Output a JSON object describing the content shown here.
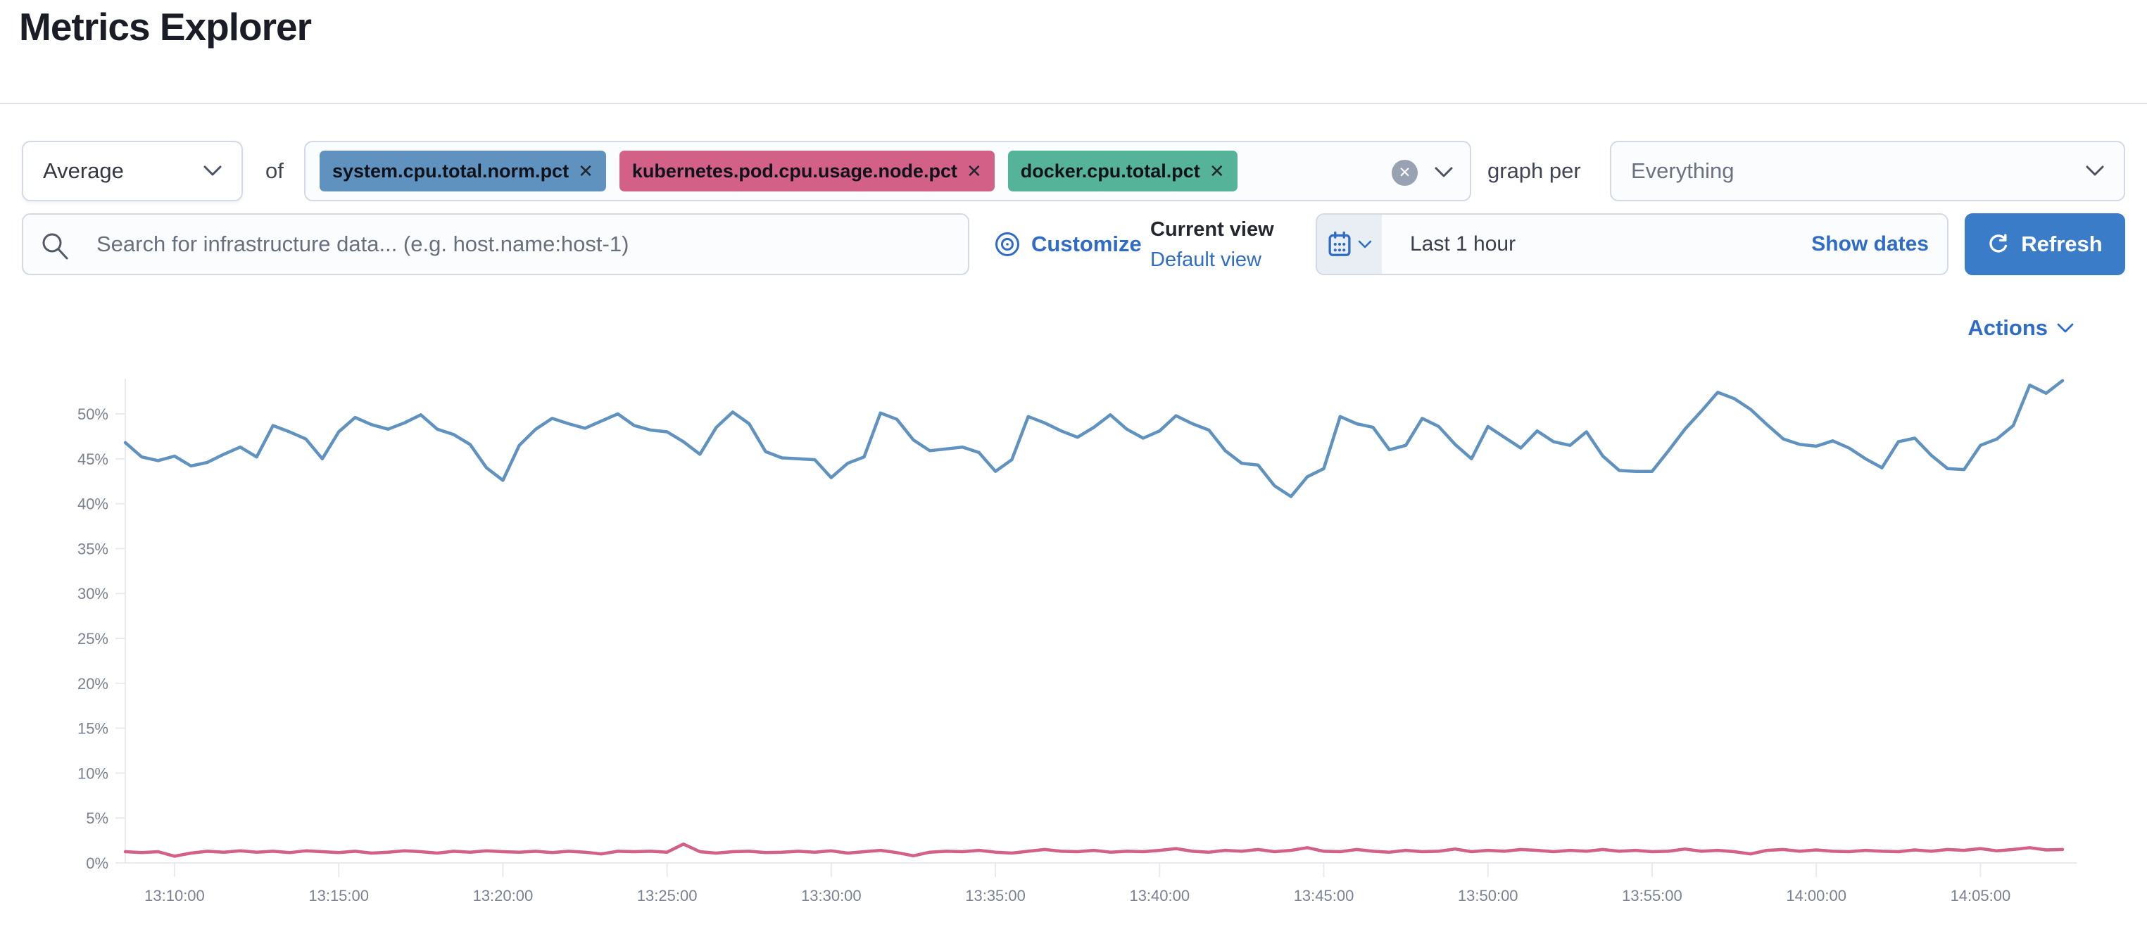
{
  "page": {
    "title": "Metrics Explorer"
  },
  "toolbar": {
    "aggregation": {
      "value": "Average"
    },
    "of_label": "of",
    "metrics": [
      {
        "label": "system.cpu.total.norm.pct",
        "color": "#6092C0"
      },
      {
        "label": "kubernetes.pod.cpu.usage.node.pct",
        "color": "#D36086"
      },
      {
        "label": "docker.cpu.total.pct",
        "color": "#54B399"
      }
    ],
    "remove_icon": "✕",
    "clear_icon": "✕",
    "graph_per_label": "graph per",
    "group_by": {
      "value": "Everything"
    }
  },
  "search": {
    "placeholder": "Search for infrastructure data... (e.g. host.name:host-1)"
  },
  "view_controls": {
    "customize_label": "Customize",
    "current_view_label": "Current view",
    "view_name": "Default view"
  },
  "time_picker": {
    "range_label": "Last 1 hour",
    "show_dates_label": "Show dates",
    "refresh_label": "Refresh"
  },
  "actions": {
    "label": "Actions"
  },
  "colors": {
    "link_blue": "#2e6cc8",
    "primary_button_blue": "#3b7cc8",
    "series_blue": "#6092C0",
    "series_pink": "#D36086",
    "tag_green": "#54B399",
    "border_gray": "#d3dae6",
    "text_dark": "#343741",
    "text_gray": "#69707d"
  },
  "chart_data": {
    "type": "line",
    "title": "",
    "xlabel": "",
    "ylabel": "",
    "ylim": [
      0,
      55
    ],
    "grid": false,
    "legend": "none",
    "x_start": "13:08:30",
    "x_end": "14:07:30",
    "x_interval_seconds": 30,
    "y_ticks": [
      {
        "value": 0,
        "label": "0%"
      },
      {
        "value": 5,
        "label": "5%"
      },
      {
        "value": 10,
        "label": "10%"
      },
      {
        "value": 15,
        "label": "15%"
      },
      {
        "value": 20,
        "label": "20%"
      },
      {
        "value": 25,
        "label": "25%"
      },
      {
        "value": 30,
        "label": "30%"
      },
      {
        "value": 35,
        "label": "35%"
      },
      {
        "value": 40,
        "label": "40%"
      },
      {
        "value": 45,
        "label": "45%"
      },
      {
        "value": 50,
        "label": "50%"
      }
    ],
    "x_ticks": [
      {
        "index": 3,
        "label": "13:10:00"
      },
      {
        "index": 13,
        "label": "13:15:00"
      },
      {
        "index": 23,
        "label": "13:20:00"
      },
      {
        "index": 33,
        "label": "13:25:00"
      },
      {
        "index": 43,
        "label": "13:30:00"
      },
      {
        "index": 53,
        "label": "13:35:00"
      },
      {
        "index": 63,
        "label": "13:40:00"
      },
      {
        "index": 73,
        "label": "13:45:00"
      },
      {
        "index": 83,
        "label": "13:50:00"
      },
      {
        "index": 93,
        "label": "13:55:00"
      },
      {
        "index": 103,
        "label": "14:00:00"
      },
      {
        "index": 113,
        "label": "14:05:00"
      }
    ],
    "series": [
      {
        "name": "system.cpu.total.norm.pct",
        "color": "#6092C0",
        "unit": "%",
        "values": [
          46.8,
          45.2,
          44.8,
          45.3,
          44.2,
          44.6,
          45.5,
          46.3,
          45.2,
          48.7,
          48.0,
          47.2,
          45.0,
          48.0,
          49.6,
          48.8,
          48.3,
          49.0,
          49.9,
          48.3,
          47.7,
          46.6,
          44.0,
          42.6,
          46.5,
          48.3,
          49.5,
          48.9,
          48.4,
          49.2,
          50.0,
          48.7,
          48.2,
          48.0,
          46.9,
          45.5,
          48.5,
          50.2,
          48.9,
          45.8,
          45.1,
          45.0,
          44.9,
          42.9,
          44.5,
          45.2,
          50.1,
          49.4,
          47.1,
          45.9,
          46.1,
          46.3,
          45.7,
          43.6,
          44.9,
          49.7,
          49.0,
          48.1,
          47.4,
          48.5,
          49.9,
          48.3,
          47.3,
          48.1,
          49.8,
          48.9,
          48.2,
          45.9,
          44.5,
          44.3,
          42.0,
          40.8,
          43.0,
          43.9,
          49.7,
          48.9,
          48.5,
          46.0,
          46.5,
          49.5,
          48.6,
          46.6,
          45.0,
          48.6,
          47.4,
          46.2,
          48.1,
          46.9,
          46.5,
          48.0,
          45.3,
          43.7,
          43.6,
          43.6,
          45.9,
          48.3,
          50.3,
          52.4,
          51.7,
          50.5,
          48.8,
          47.2,
          46.6,
          46.4,
          47.0,
          46.2,
          45.0,
          44.0,
          46.9,
          47.3,
          45.4,
          43.9,
          43.8,
          46.5,
          47.2,
          48.7,
          53.2,
          52.3,
          53.7
        ]
      },
      {
        "name": "kubernetes.pod.cpu.usage.node.pct",
        "color": "#D36086",
        "unit": "%",
        "values": [
          1.25,
          1.15,
          1.25,
          0.75,
          1.1,
          1.3,
          1.2,
          1.35,
          1.2,
          1.3,
          1.15,
          1.35,
          1.25,
          1.15,
          1.3,
          1.1,
          1.2,
          1.35,
          1.25,
          1.1,
          1.3,
          1.2,
          1.35,
          1.25,
          1.2,
          1.3,
          1.15,
          1.3,
          1.2,
          1.0,
          1.3,
          1.25,
          1.3,
          1.2,
          2.1,
          1.25,
          1.1,
          1.25,
          1.3,
          1.15,
          1.2,
          1.3,
          1.2,
          1.35,
          1.1,
          1.25,
          1.4,
          1.15,
          0.8,
          1.2,
          1.3,
          1.25,
          1.4,
          1.2,
          1.1,
          1.3,
          1.5,
          1.3,
          1.25,
          1.4,
          1.2,
          1.3,
          1.25,
          1.4,
          1.6,
          1.3,
          1.2,
          1.4,
          1.3,
          1.5,
          1.25,
          1.4,
          1.7,
          1.3,
          1.25,
          1.5,
          1.3,
          1.2,
          1.4,
          1.25,
          1.3,
          1.55,
          1.25,
          1.4,
          1.3,
          1.5,
          1.4,
          1.25,
          1.4,
          1.3,
          1.5,
          1.3,
          1.4,
          1.25,
          1.3,
          1.55,
          1.3,
          1.4,
          1.25,
          1.0,
          1.4,
          1.5,
          1.3,
          1.45,
          1.3,
          1.25,
          1.4,
          1.3,
          1.25,
          1.45,
          1.3,
          1.5,
          1.4,
          1.6,
          1.35,
          1.5,
          1.7,
          1.45,
          1.5
        ]
      }
    ]
  }
}
